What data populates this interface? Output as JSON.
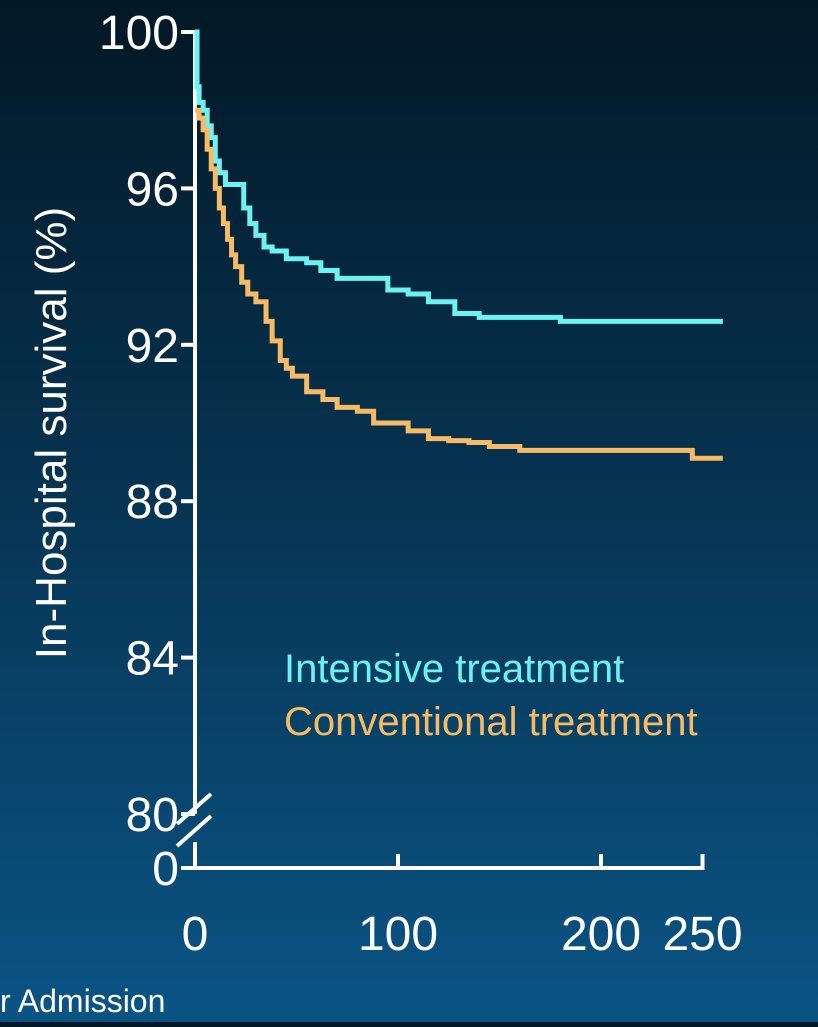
{
  "chart_data": {
    "type": "line",
    "subtype": "step",
    "ylabel": "In-Hospital survival (%)",
    "xlabel": "r Admission",
    "y_ticks": [
      "100",
      "96",
      "92",
      "88",
      "84",
      "80",
      "0"
    ],
    "y_tick_values": [
      100,
      96,
      92,
      88,
      84,
      80
    ],
    "y_axis_break": "between 80 and 0",
    "x_ticks": [
      "0",
      "100",
      "200",
      "250"
    ],
    "x_tick_values": [
      0,
      100,
      200,
      250
    ],
    "xlim": [
      0,
      260
    ],
    "ylim": [
      80,
      100
    ],
    "legend_position": "center-right",
    "grid": false,
    "colors": {
      "axis": "#ffffff",
      "tick_label": "#ffffff",
      "intensive": "#6df2f2",
      "conventional": "#f6bb64"
    },
    "series": [
      {
        "name": "Intensive treatment",
        "color": "#6df2f2",
        "points": [
          [
            0,
            100
          ],
          [
            1,
            98.6
          ],
          [
            2,
            98.2
          ],
          [
            4,
            98.0
          ],
          [
            6,
            97.6
          ],
          [
            8,
            97.3
          ],
          [
            10,
            96.7
          ],
          [
            12,
            96.4
          ],
          [
            15,
            96.1
          ],
          [
            20,
            96.1
          ],
          [
            24,
            95.5
          ],
          [
            27,
            95.1
          ],
          [
            30,
            94.8
          ],
          [
            34,
            94.5
          ],
          [
            38,
            94.4
          ],
          [
            45,
            94.2
          ],
          [
            55,
            94.1
          ],
          [
            62,
            93.9
          ],
          [
            70,
            93.7
          ],
          [
            85,
            93.7
          ],
          [
            95,
            93.4
          ],
          [
            105,
            93.3
          ],
          [
            115,
            93.1
          ],
          [
            128,
            92.8
          ],
          [
            140,
            92.7
          ],
          [
            180,
            92.6
          ],
          [
            230,
            92.6
          ],
          [
            260,
            92.6
          ]
        ]
      },
      {
        "name": "Conventional treatment",
        "color": "#f6bb64",
        "points": [
          [
            0,
            98.0
          ],
          [
            2,
            97.8
          ],
          [
            4,
            97.5
          ],
          [
            6,
            97.0
          ],
          [
            8,
            96.5
          ],
          [
            10,
            96.0
          ],
          [
            12,
            95.5
          ],
          [
            14,
            95.1
          ],
          [
            16,
            94.7
          ],
          [
            18,
            94.3
          ],
          [
            20,
            94.0
          ],
          [
            23,
            93.6
          ],
          [
            26,
            93.3
          ],
          [
            30,
            93.1
          ],
          [
            35,
            92.6
          ],
          [
            38,
            92.1
          ],
          [
            42,
            91.6
          ],
          [
            45,
            91.4
          ],
          [
            48,
            91.2
          ],
          [
            55,
            90.8
          ],
          [
            63,
            90.6
          ],
          [
            70,
            90.4
          ],
          [
            80,
            90.3
          ],
          [
            88,
            90.0
          ],
          [
            95,
            90.0
          ],
          [
            105,
            89.8
          ],
          [
            115,
            89.6
          ],
          [
            125,
            89.55
          ],
          [
            135,
            89.5
          ],
          [
            145,
            89.4
          ],
          [
            160,
            89.3
          ],
          [
            200,
            89.3
          ],
          [
            240,
            89.3
          ],
          [
            245,
            89.1
          ],
          [
            260,
            89.1
          ]
        ]
      }
    ]
  }
}
